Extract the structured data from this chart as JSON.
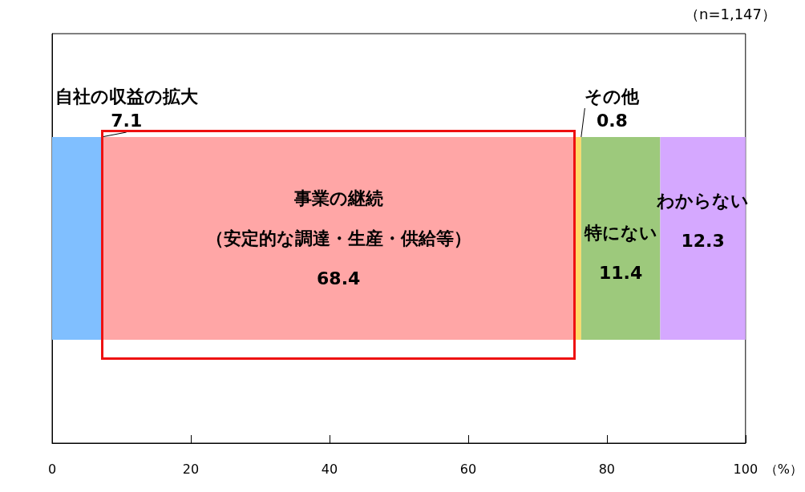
{
  "chart_data": {
    "type": "bar",
    "orientation": "horizontal",
    "stacked": true,
    "categories": [
      null
    ],
    "series": [
      {
        "name": "自社の収益の拡大",
        "color": "#80bfff",
        "values": [
          7.1
        ]
      },
      {
        "name": "事業の継続（安定的な調達・生産・供給等）",
        "color": "#ffa6a6",
        "values": [
          68.4
        ]
      },
      {
        "name": "その他",
        "color": "#ffd966",
        "values": [
          0.8
        ]
      },
      {
        "name": "特にない",
        "color": "#9dc97c",
        "values": [
          11.4
        ]
      },
      {
        "name": "わからない",
        "color": "#d5a8ff",
        "values": [
          12.3
        ]
      }
    ],
    "xlabel": "（%）",
    "xlim": [
      0,
      100
    ],
    "xticks": [
      0,
      20,
      40,
      60,
      80,
      100
    ],
    "data_labels": true,
    "tick_labels": "x",
    "annotations": [
      "（n=1,147）"
    ]
  }
}
